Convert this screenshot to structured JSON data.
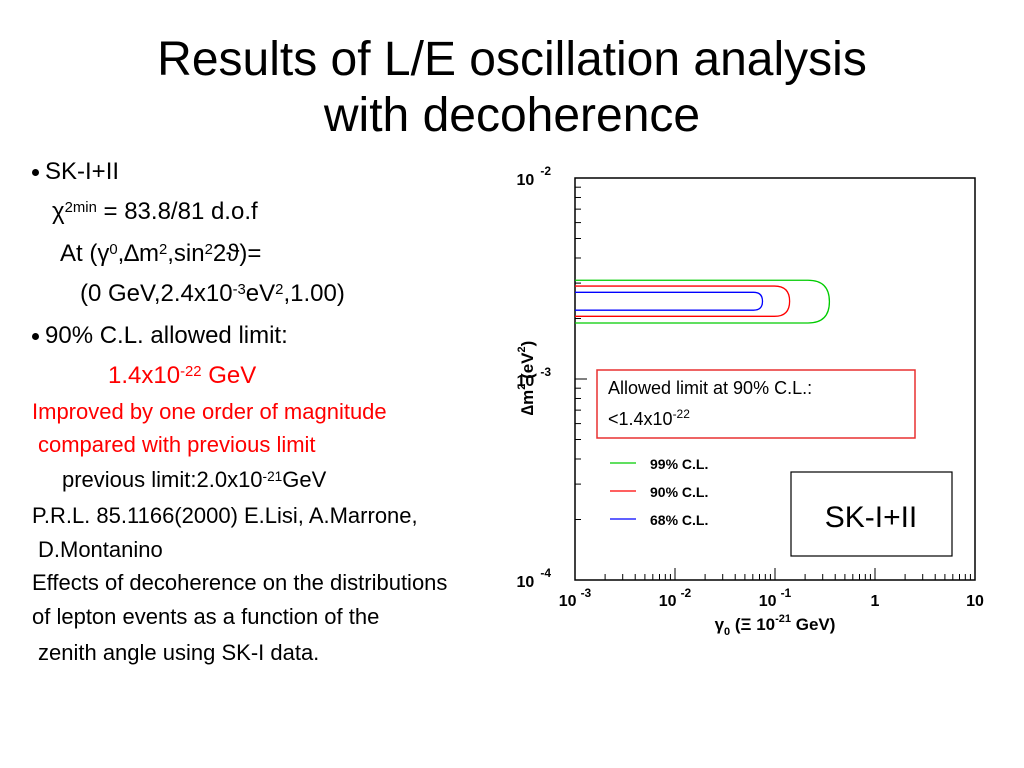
{
  "slide": {
    "title_line1": "Results of L/E oscillation analysis",
    "title_line2": "with decoherence"
  },
  "text": {
    "b1": "SK-I+II",
    "chi_sym": "χ",
    "chi_sup": "2min",
    "chi_val": " = 83.8/81 d.o.f",
    "at_pre": "At (",
    "gamma_sym": "γ",
    "gamma_sup": "0",
    "comma_delta": ",∆m",
    "m_sup": "2",
    "sin_part": ",sin",
    "sin_sup": "2",
    "two_theta": "2ϑ)=",
    "best_pre": "(0 GeV,2.4x10",
    "best_exp": "-3",
    "best_ev": "eV",
    "best_ev_sup": "2",
    "best_post": ",1.00)",
    "b2": "90% C.L. allowed limit:",
    "limit_base": "1.4x10",
    "limit_exp": "-22",
    "limit_unit": " GeV",
    "improved1": "Improved by one order of magnitude",
    "improved2": "compared with previous limit",
    "prev_pre": "previous limit:2.0x10",
    "prev_exp": "-21",
    "prev_unit": "GeV",
    "ref1": "P.R.L. 85.1166(2000) E.Lisi, A.Marrone,",
    "ref2": "D.Montanino",
    "eff1": "Effects of decoherence on the distributions",
    "eff2": "of lepton events as a function of the",
    "eff3": "zenith angle using SK-I data."
  },
  "chart_data": {
    "type": "contour",
    "x_label": "γ₀ (Ξ 10⁻²¹ GeV)",
    "y_label": "∆m² (eV²)",
    "x_scale": "log",
    "y_scale": "log",
    "xlim": [
      0.001,
      10
    ],
    "ylim": [
      0.0001,
      0.01
    ],
    "x_ticks": [
      {
        "base": "10",
        "exp": "-3"
      },
      {
        "base": "10",
        "exp": "-2"
      },
      {
        "base": "10",
        "exp": "-1"
      },
      {
        "base": "1",
        "exp": ""
      },
      {
        "base": "10",
        "exp": ""
      }
    ],
    "y_ticks": [
      {
        "base": "10",
        "exp": "-2"
      },
      {
        "base": "10",
        "exp": "-3"
      },
      {
        "base": "10",
        "exp": "-4"
      }
    ],
    "series": [
      {
        "name": "99% C.L.",
        "color": "#00cc00",
        "gamma_max": 0.35,
        "dm2_low": 0.0019,
        "dm2_high": 0.0031
      },
      {
        "name": "90% C.L.",
        "color": "#ff0000",
        "gamma_max": 0.14,
        "dm2_low": 0.00205,
        "dm2_high": 0.0029
      },
      {
        "name": "68% C.L.",
        "color": "#0000ff",
        "gamma_max": 0.075,
        "dm2_low": 0.0022,
        "dm2_high": 0.0027
      }
    ],
    "annotation_line1": "Allowed limit at 90% C.L.:",
    "annotation_line2_base": "<1.4x10",
    "annotation_line2_exp": "-22",
    "sample_label": "SK-I+II"
  }
}
